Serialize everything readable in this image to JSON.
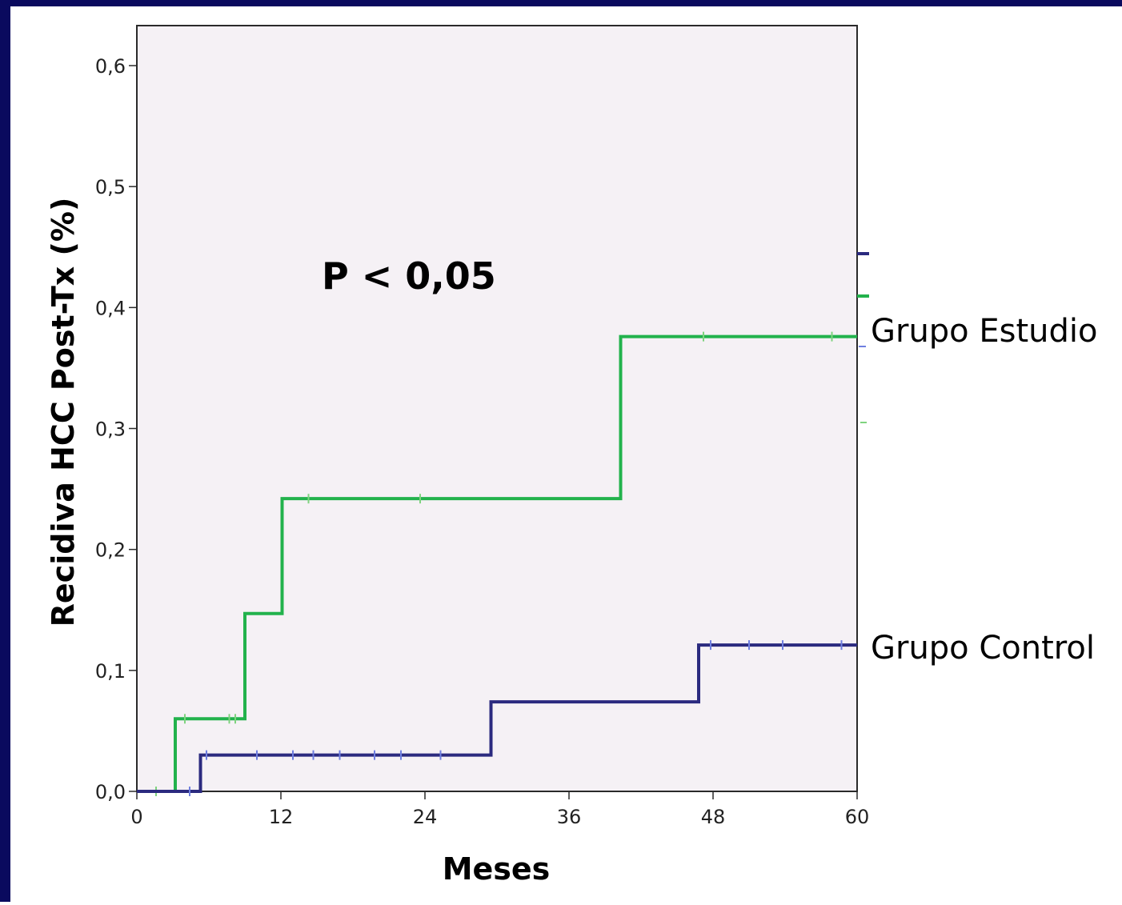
{
  "colors": {
    "slide_border": "#0a0a5e",
    "slide_background": "#ffffff",
    "plot_background": "#f5f1f5",
    "control": "#2b2a7f",
    "estudio": "#22b24c",
    "censor_control": "#6f7fe0",
    "censor_estudio": "#7fd37f"
  },
  "chart_data": {
    "type": "line",
    "subtype": "kaplan-meier step (cumulative incidence)",
    "xlabel": "Meses",
    "ylabel": "Recidiva HCC Post-Tx (%)",
    "annotation": "P < 0,05",
    "xlim": [
      0,
      60
    ],
    "ylim": [
      0,
      0.6
    ],
    "x_ticks": [
      0,
      12,
      24,
      36,
      48,
      60
    ],
    "x_tick_labels": [
      "0",
      "12",
      "24",
      "36",
      "48",
      "60"
    ],
    "y_ticks": [
      0,
      0.1,
      0.2,
      0.3,
      0.4,
      0.5,
      0.6
    ],
    "y_tick_labels": [
      "0,0",
      "0,1",
      "0,2",
      "0,3",
      "0,4",
      "0,5",
      "0,6"
    ],
    "grid": false,
    "legend": "none",
    "series": [
      {
        "name": "Grupo Estudio",
        "color": "#22b24c",
        "steps": [
          [
            0,
            0
          ],
          [
            3.2,
            0.06
          ],
          [
            9.0,
            0.147
          ],
          [
            12.1,
            0.242
          ],
          [
            40.3,
            0.376
          ]
        ],
        "end_x": 60,
        "censored": [
          [
            1.6,
            0
          ],
          [
            4.0,
            0.06
          ],
          [
            7.7,
            0.06
          ],
          [
            8.2,
            0.06
          ],
          [
            14.3,
            0.242
          ],
          [
            23.6,
            0.242
          ],
          [
            47.2,
            0.376
          ],
          [
            57.9,
            0.376
          ]
        ]
      },
      {
        "name": "Grupo Control",
        "color": "#2b2a7f",
        "steps": [
          [
            0,
            0
          ],
          [
            5.3,
            0.03
          ],
          [
            29.5,
            0.074
          ],
          [
            46.8,
            0.121
          ]
        ],
        "end_x": 60,
        "censored": [
          [
            4.4,
            0
          ],
          [
            5.8,
            0.03
          ],
          [
            10.0,
            0.03
          ],
          [
            13.0,
            0.03
          ],
          [
            14.7,
            0.03
          ],
          [
            16.9,
            0.03
          ],
          [
            19.8,
            0.03
          ],
          [
            22.0,
            0.03
          ],
          [
            25.3,
            0.03
          ],
          [
            47.8,
            0.121
          ],
          [
            51.0,
            0.121
          ],
          [
            53.8,
            0.121
          ],
          [
            58.7,
            0.121
          ]
        ]
      }
    ]
  }
}
